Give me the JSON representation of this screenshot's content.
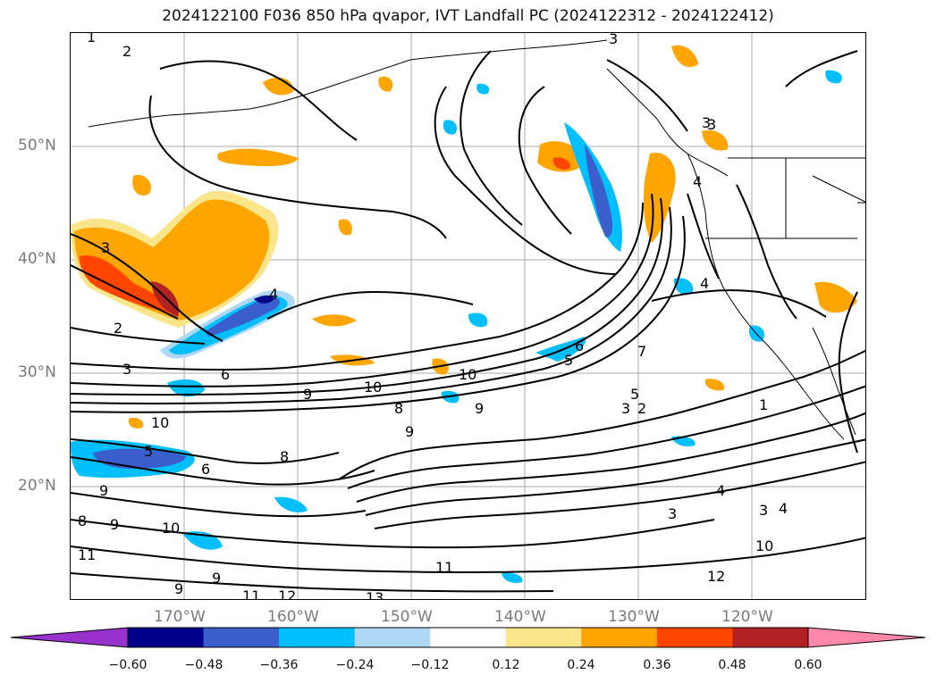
{
  "title": "2024122100 F036 850 hPa qvapor, IVT Landfall PC (2024122312 - 2024122412)",
  "lat_labels": [
    "50°N",
    "40°N",
    "30°N",
    "20°N"
  ],
  "lon_labels": [
    "170°W",
    "160°W",
    "150°W",
    "140°W",
    "130°W",
    "120°W"
  ],
  "colorbar": {
    "ticks": [
      "−0.60",
      "−0.48",
      "−0.36",
      "−0.24",
      "−0.12",
      "0.12",
      "0.24",
      "0.36",
      "0.48",
      "0.60"
    ],
    "colors": [
      "#9932cc",
      "#00008b",
      "#3a5fcd",
      "#00bfff",
      "#add8f5",
      "#ffffff",
      "#fbe58a",
      "#ffa500",
      "#ff4500",
      "#b22222",
      "#ff88aa"
    ]
  },
  "contour_labels": [
    "1",
    "2",
    "3",
    "3",
    "2",
    "3",
    "4",
    "6",
    "9",
    "10",
    "10",
    "8",
    "9",
    "9",
    "10",
    "5",
    "6",
    "9",
    "8",
    "9",
    "10",
    "11",
    "9",
    "9",
    "8",
    "12",
    "11",
    "13",
    "11",
    "12",
    "10",
    "3",
    "3",
    "4",
    "1",
    "4",
    "5",
    "2",
    "3",
    "7",
    "6",
    "5",
    "3",
    "4",
    "4",
    "3"
  ]
}
